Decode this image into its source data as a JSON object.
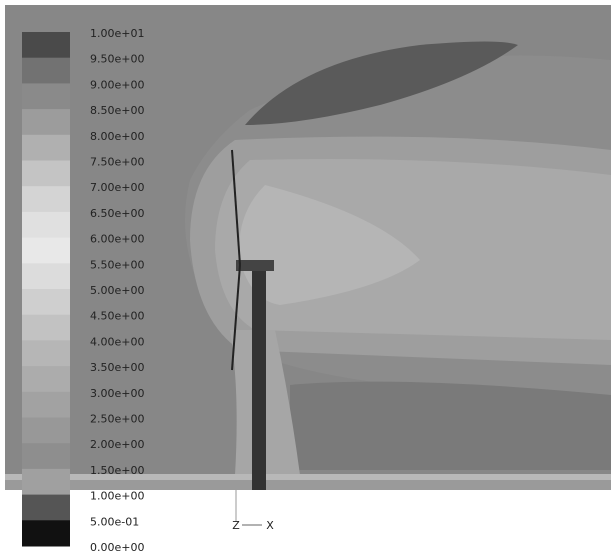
{
  "legend": {
    "labels": [
      "1.00e+01",
      "9.50e+00",
      "9.00e+00",
      "8.50e+00",
      "8.00e+00",
      "7.50e+00",
      "7.00e+00",
      "6.50e+00",
      "6.00e+00",
      "5.50e+00",
      "5.00e+00",
      "4.50e+00",
      "4.00e+00",
      "3.50e+00",
      "3.00e+00",
      "2.50e+00",
      "2.00e+00",
      "1.50e+00",
      "1.00e+00",
      "5.00e-01",
      "0.00e+00"
    ]
  },
  "axes": {
    "z": "Z",
    "x": "X"
  }
}
